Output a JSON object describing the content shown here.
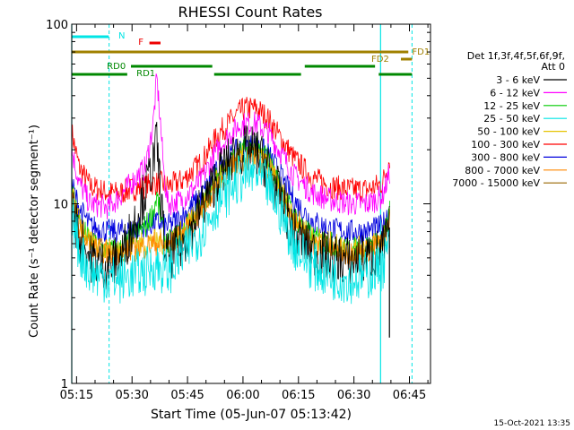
{
  "chart_data": {
    "type": "line",
    "title": "RHESSI Count Rates",
    "xlabel": "Start Time (05-Jun-07 05:13:42)",
    "ylabel": "Count Rate (s⁻¹ detector segment⁻¹)",
    "x_unit": "minutes since 05:13:42",
    "xlim": [
      0,
      97
    ],
    "ylim": [
      1,
      100
    ],
    "yscale": "log",
    "x_ticks": [
      {
        "label": "05:15",
        "value": 1.3
      },
      {
        "label": "05:30",
        "value": 16.3
      },
      {
        "label": "05:45",
        "value": 31.3
      },
      {
        "label": "06:00",
        "value": 46.3
      },
      {
        "label": "06:15",
        "value": 61.3
      },
      {
        "label": "06:30",
        "value": 76.3
      },
      {
        "label": "06:45",
        "value": 91.3
      }
    ],
    "y_ticks": [
      {
        "label": "1",
        "value": 1
      },
      {
        "label": "10",
        "value": 10
      },
      {
        "label": "100",
        "value": 100
      }
    ],
    "legend": {
      "position": "right",
      "header": [
        "Det 1f,3f,4f,5f,6f,9f,",
        "Att 0"
      ],
      "items": [
        {
          "label": "3 - 6 keV",
          "color": "#000000"
        },
        {
          "label": "6 - 12 keV",
          "color": "#ff00ff"
        },
        {
          "label": "12 - 25 keV",
          "color": "#00cc00"
        },
        {
          "label": "25 - 50 keV",
          "color": "#00e5e5"
        },
        {
          "label": "50 - 100 keV",
          "color": "#e6c300"
        },
        {
          "label": "100 - 300 keV",
          "color": "#ff0000"
        },
        {
          "label": "300 - 800 keV",
          "color": "#0000dd"
        },
        {
          "label": "800 - 7000 keV",
          "color": "#ff8800"
        },
        {
          "label": "7000 - 15000 keV",
          "color": "#996600"
        }
      ]
    },
    "x": [
      0.0,
      2.0,
      5.0,
      10.0,
      13.0,
      16.0,
      20.0,
      22.0,
      23.0,
      24.0,
      25.0,
      26.0,
      30.0,
      35.0,
      40.0,
      45.0,
      47.0,
      50.0,
      53.0,
      56.0,
      60.0,
      65.0,
      70.0,
      75.0,
      80.0,
      84.0,
      86.0
    ],
    "series": [
      {
        "name": "100 - 300 keV",
        "color": "#ff0000",
        "values": [
          25.0,
          16.0,
          12.5,
          11.5,
          11.5,
          12.0,
          12.5,
          13.0,
          13.0,
          13.0,
          12.8,
          12.5,
          13.5,
          17.0,
          25.0,
          32.0,
          34.0,
          34.0,
          30.0,
          24.0,
          18.0,
          14.0,
          12.5,
          12.0,
          12.0,
          13.0,
          18.0
        ]
      },
      {
        "name": "6 - 12 keV",
        "color": "#ff00ff",
        "values": [
          20.0,
          13.0,
          10.0,
          9.5,
          11.0,
          13.0,
          16.0,
          28.0,
          50.0,
          28.0,
          14.0,
          10.0,
          10.5,
          13.5,
          21.0,
          27.0,
          28.0,
          28.0,
          25.0,
          20.0,
          14.5,
          11.5,
          10.5,
          10.0,
          10.0,
          11.0,
          15.0
        ]
      },
      {
        "name": "300 - 800 keV",
        "color": "#0000dd",
        "values": [
          13.0,
          9.5,
          7.5,
          7.0,
          7.0,
          7.2,
          7.5,
          7.8,
          7.8,
          7.8,
          7.5,
          7.5,
          8.5,
          11.0,
          16.0,
          20.0,
          21.0,
          21.0,
          19.0,
          15.0,
          10.5,
          8.0,
          7.2,
          7.0,
          7.0,
          7.5,
          9.5
        ]
      },
      {
        "name": "12 - 25 keV",
        "color": "#00cc00",
        "values": [
          12.0,
          8.0,
          6.0,
          5.5,
          5.5,
          6.5,
          7.5,
          9.0,
          11.0,
          8.5,
          6.5,
          6.0,
          7.0,
          9.5,
          15.0,
          19.0,
          20.0,
          20.0,
          18.0,
          13.0,
          8.5,
          6.5,
          6.0,
          5.5,
          5.8,
          6.0,
          9.0
        ]
      },
      {
        "name": "50 - 100 keV",
        "color": "#e6c300",
        "values": [
          11.5,
          8.0,
          6.0,
          5.5,
          5.5,
          5.8,
          6.0,
          6.2,
          6.2,
          6.2,
          6.0,
          6.0,
          7.0,
          9.5,
          14.0,
          17.5,
          18.5,
          18.5,
          16.5,
          12.5,
          8.5,
          6.5,
          6.0,
          5.5,
          5.8,
          6.2,
          8.5
        ]
      },
      {
        "name": "800 - 7000 keV",
        "color": "#ff8800",
        "values": [
          11.0,
          7.5,
          5.8,
          5.3,
          5.3,
          5.5,
          5.8,
          6.0,
          6.0,
          6.0,
          5.8,
          5.8,
          6.8,
          9.0,
          13.5,
          17.0,
          18.0,
          18.0,
          16.0,
          12.0,
          8.0,
          6.0,
          5.5,
          5.3,
          5.5,
          6.0,
          8.0
        ]
      },
      {
        "name": "3 - 6 keV",
        "color": "#000000",
        "values": [
          10.0,
          6.5,
          5.0,
          4.5,
          5.0,
          7.0,
          12.0,
          17.0,
          22.0,
          12.0,
          6.0,
          5.0,
          6.0,
          9.5,
          15.0,
          19.5,
          20.0,
          19.5,
          16.0,
          11.5,
          7.0,
          5.5,
          5.0,
          4.8,
          5.0,
          5.5,
          7.5
        ]
      },
      {
        "name": "25 - 50 keV",
        "color": "#00e5e5",
        "values": [
          9.0,
          5.5,
          4.2,
          3.8,
          3.8,
          4.0,
          4.2,
          4.5,
          4.5,
          4.4,
          4.2,
          4.2,
          5.2,
          7.0,
          10.5,
          13.5,
          14.5,
          14.5,
          12.5,
          9.5,
          6.0,
          4.5,
          4.0,
          3.8,
          4.0,
          4.5,
          6.0
        ]
      }
    ],
    "spikes": [
      {
        "series": "3 - 6 keV",
        "x": 85.9,
        "value": 1.8
      }
    ],
    "flags": [
      {
        "label": "N",
        "color": "#00e5e5",
        "segments": [
          [
            0,
            10
          ]
        ],
        "label_at": 12.6
      },
      {
        "label": "F",
        "color": "#ee0000",
        "segments": [
          [
            21,
            24
          ]
        ],
        "label_at": 18
      },
      {
        "label": "FD1",
        "color": "#a08000",
        "segments": [
          [
            0,
            91
          ]
        ],
        "label_at": 92
      },
      {
        "label": "FD2",
        "color": "#a08000",
        "segments": [
          [
            89,
            92
          ]
        ],
        "label_at": 81
      },
      {
        "label": "RD0",
        "color": "#008800",
        "segments": [
          [
            16,
            38
          ],
          [
            63,
            82
          ]
        ],
        "label_at": 9.5
      },
      {
        "label": "RD1",
        "color": "#008800",
        "segments": [
          [
            0,
            15
          ],
          [
            38.5,
            62
          ],
          [
            83,
            92
          ]
        ],
        "label_at": 17.5
      }
    ],
    "vlines_dashed": [
      10.1,
      92
    ],
    "vlines_solid": [
      0,
      83.5
    ],
    "timestamp": "15-Oct-2021 13:35"
  }
}
